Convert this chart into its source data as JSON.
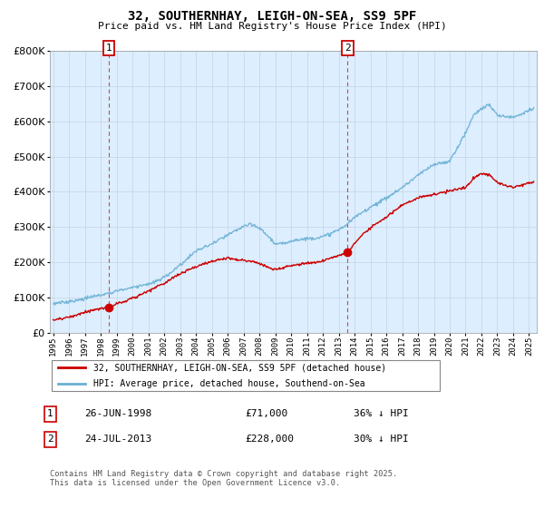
{
  "title": "32, SOUTHERNHAY, LEIGH-ON-SEA, SS9 5PF",
  "subtitle": "Price paid vs. HM Land Registry's House Price Index (HPI)",
  "hpi_color": "#6ab0d4",
  "price_color": "#cc0000",
  "grid_color": "#c8d8e8",
  "bg_color": "#ddeeff",
  "sale1": {
    "date_num": 1998.49,
    "price": 71000,
    "label": "1"
  },
  "sale2": {
    "date_num": 2013.56,
    "price": 228000,
    "label": "2"
  },
  "legend1": "32, SOUTHERNHAY, LEIGH-ON-SEA, SS9 5PF (detached house)",
  "legend2": "HPI: Average price, detached house, Southend-on-Sea",
  "table_row1": [
    "1",
    "26-JUN-1998",
    "£71,000",
    "36% ↓ HPI"
  ],
  "table_row2": [
    "2",
    "24-JUL-2013",
    "£228,000",
    "30% ↓ HPI"
  ],
  "footnote": "Contains HM Land Registry data © Crown copyright and database right 2025.\nThis data is licensed under the Open Government Licence v3.0.",
  "ylim": [
    0,
    800000
  ],
  "yticks": [
    0,
    100000,
    200000,
    300000,
    400000,
    500000,
    600000,
    700000,
    800000
  ],
  "xlim": [
    1994.8,
    2025.5
  ],
  "hpi_key_x": [
    1995,
    1996,
    1997,
    1998,
    1999,
    2000,
    2001,
    2002,
    2003,
    2004,
    2005,
    2006,
    2007,
    2007.5,
    2008,
    2008.5,
    2009,
    2009.5,
    2010,
    2011,
    2012,
    2013,
    2013.5,
    2014,
    2015,
    2016,
    2017,
    2018,
    2019,
    2020,
    2020.5,
    2021,
    2021.5,
    2022,
    2022.5,
    2023,
    2024,
    2025.3
  ],
  "hpi_key_y": [
    82000,
    90000,
    100000,
    110000,
    120000,
    128000,
    138000,
    160000,
    195000,
    235000,
    255000,
    280000,
    305000,
    310000,
    300000,
    280000,
    255000,
    255000,
    265000,
    270000,
    275000,
    295000,
    310000,
    330000,
    360000,
    385000,
    415000,
    450000,
    480000,
    490000,
    530000,
    570000,
    620000,
    640000,
    650000,
    620000,
    615000,
    640000
  ],
  "price_key_x": [
    1995,
    1995.5,
    1996,
    1997,
    1997.5,
    1998.0,
    1998.49,
    1999,
    2000,
    2001,
    2002,
    2003,
    2004,
    2005,
    2006,
    2007,
    2007.5,
    2008,
    2008.5,
    2009,
    2009.5,
    2010,
    2011,
    2012,
    2012.5,
    2013.0,
    2013.56,
    2014,
    2014.5,
    2015,
    2016,
    2017,
    2018,
    2019,
    2020,
    2021,
    2021.5,
    2022,
    2022.5,
    2023,
    2023.5,
    2024,
    2025.3
  ],
  "price_key_y": [
    35000,
    38000,
    42000,
    55000,
    62000,
    66000,
    71000,
    80000,
    95000,
    115000,
    140000,
    165000,
    185000,
    200000,
    210000,
    205000,
    200000,
    195000,
    185000,
    180000,
    185000,
    192000,
    200000,
    205000,
    215000,
    220000,
    228000,
    255000,
    280000,
    300000,
    330000,
    365000,
    385000,
    395000,
    405000,
    415000,
    440000,
    455000,
    450000,
    430000,
    420000,
    415000,
    430000
  ]
}
